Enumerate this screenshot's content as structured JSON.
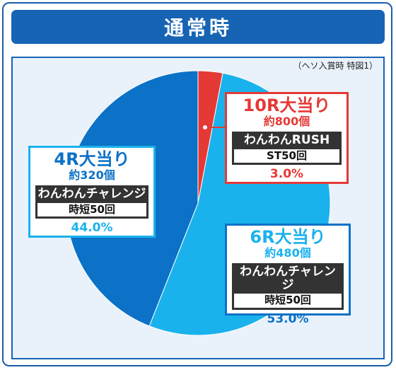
{
  "header": {
    "title": "通常時"
  },
  "note": "（ヘソ入賞時 特図1）",
  "colors": {
    "red": "#e53935",
    "sky": "#1ab2ec",
    "blue": "#0b72c7",
    "frame": "#1764b4"
  },
  "chart_data": {
    "type": "pie",
    "slices": [
      {
        "label": "10R大当り",
        "count": "約800個",
        "mode": "わんわんRUSH",
        "sub": "ST50回",
        "value": 3.0,
        "value_label": "3.0%",
        "color": "#e53935"
      },
      {
        "label": "6R大当り",
        "count": "約480個",
        "mode": "わんわんチャレンジ",
        "sub": "時短50回",
        "value": 53.0,
        "value_label": "53.0%",
        "color": "#1ab2ec"
      },
      {
        "label": "4R大当り",
        "count": "約320個",
        "mode": "わんわんチャレンジ",
        "sub": "時短50回",
        "value": 44.0,
        "value_label": "44.0%",
        "color": "#0b72c7"
      }
    ]
  }
}
